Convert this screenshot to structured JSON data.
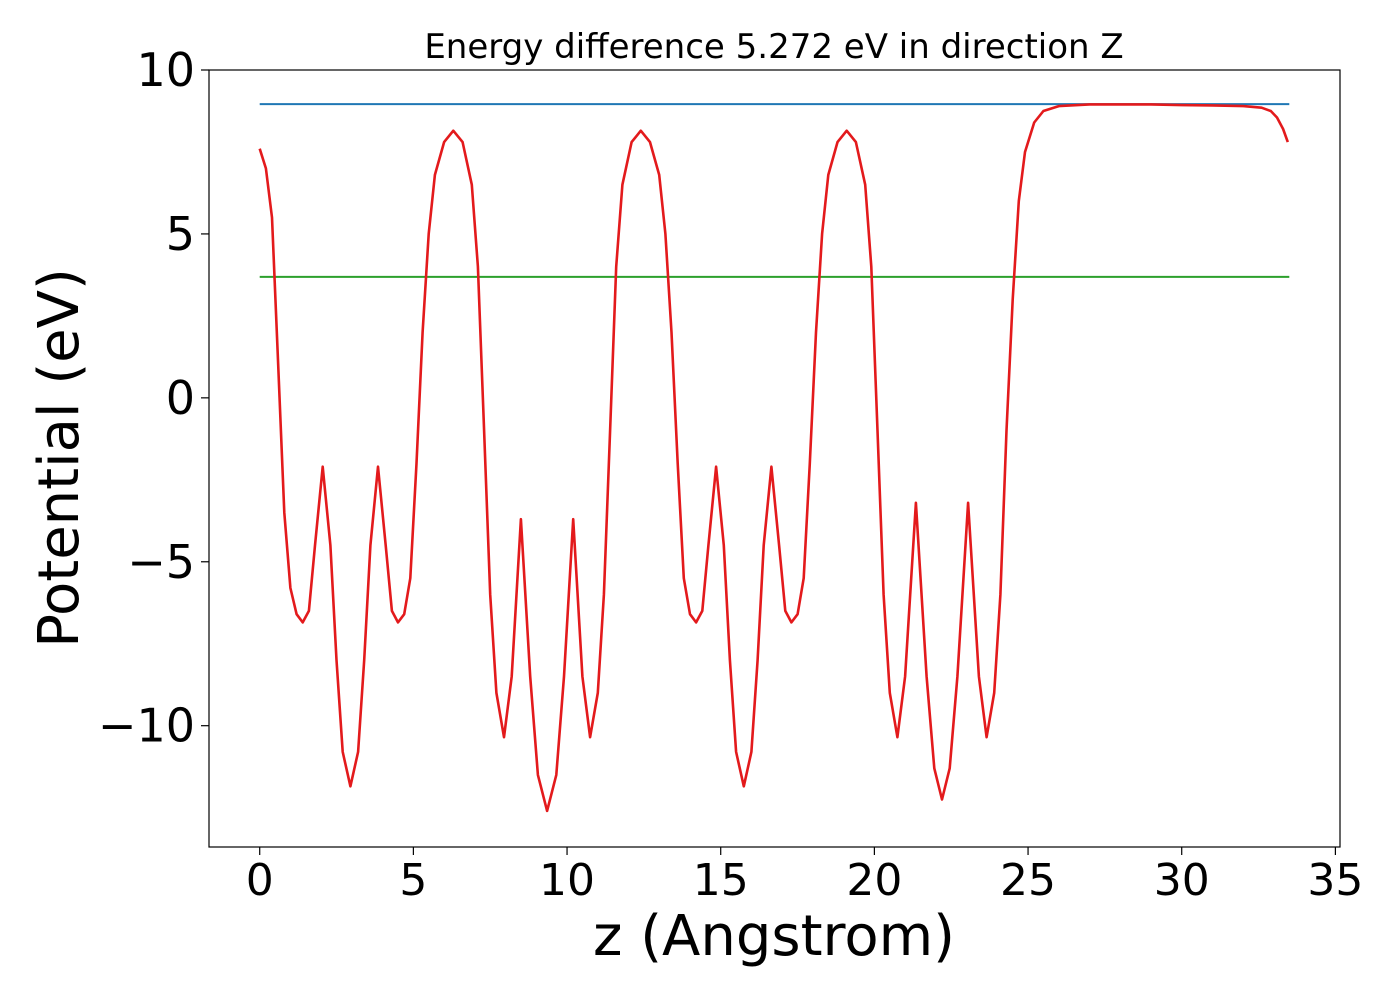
{
  "chart_data": {
    "type": "line",
    "title": "Energy difference 5.272 eV in direction Z",
    "xlabel": "z (Angstrom)",
    "ylabel": "Potential (eV)",
    "xlim": [
      -1.65,
      35.15
    ],
    "ylim": [
      -13.7,
      10.0
    ],
    "xticks": [
      0,
      5,
      10,
      15,
      20,
      25,
      30,
      35
    ],
    "xtick_labels": [
      "0",
      "5",
      "10",
      "15",
      "20",
      "25",
      "30",
      "35"
    ],
    "yticks": [
      10,
      5,
      0,
      -5,
      -10
    ],
    "ytick_labels": [
      "10",
      "5",
      "0",
      "−5",
      "−10"
    ],
    "grid": false,
    "legend": "none",
    "series": [
      {
        "color": "#1f77b4",
        "style": "horizontal",
        "x_range": [
          0,
          33.5
        ],
        "y": 8.96
      },
      {
        "color": "#2ca02c",
        "style": "horizontal",
        "x_range": [
          0,
          33.5
        ],
        "y": 3.69
      },
      {
        "color": "#e31a1c",
        "style": "curve",
        "points": [
          [
            0.0,
            7.6
          ],
          [
            0.2,
            7.0
          ],
          [
            0.4,
            5.5
          ],
          [
            0.6,
            1.0
          ],
          [
            0.8,
            -3.5
          ],
          [
            1.0,
            -5.8
          ],
          [
            1.2,
            -6.6
          ],
          [
            1.4,
            -6.85
          ],
          [
            1.6,
            -6.5
          ],
          [
            1.8,
            -4.5
          ],
          [
            2.05,
            -2.1
          ],
          [
            2.3,
            -4.5
          ],
          [
            2.5,
            -8.0
          ],
          [
            2.7,
            -10.8
          ],
          [
            2.95,
            -11.85
          ],
          [
            3.2,
            -10.8
          ],
          [
            3.4,
            -8.0
          ],
          [
            3.6,
            -4.5
          ],
          [
            3.85,
            -2.1
          ],
          [
            4.1,
            -4.5
          ],
          [
            4.3,
            -6.5
          ],
          [
            4.5,
            -6.85
          ],
          [
            4.7,
            -6.6
          ],
          [
            4.9,
            -5.5
          ],
          [
            5.1,
            -2.0
          ],
          [
            5.3,
            2.0
          ],
          [
            5.5,
            5.0
          ],
          [
            5.7,
            6.8
          ],
          [
            6.0,
            7.8
          ],
          [
            6.3,
            8.15
          ],
          [
            6.6,
            7.8
          ],
          [
            6.9,
            6.5
          ],
          [
            7.1,
            4.0
          ],
          [
            7.3,
            -1.0
          ],
          [
            7.5,
            -6.0
          ],
          [
            7.7,
            -9.0
          ],
          [
            7.95,
            -10.35
          ],
          [
            8.2,
            -8.5
          ],
          [
            8.5,
            -3.7
          ],
          [
            8.8,
            -8.5
          ],
          [
            9.05,
            -11.5
          ],
          [
            9.35,
            -12.6
          ],
          [
            9.65,
            -11.5
          ],
          [
            9.9,
            -8.5
          ],
          [
            10.2,
            -3.7
          ],
          [
            10.5,
            -8.5
          ],
          [
            10.75,
            -10.35
          ],
          [
            11.0,
            -9.0
          ],
          [
            11.2,
            -6.0
          ],
          [
            11.4,
            -1.0
          ],
          [
            11.6,
            4.0
          ],
          [
            11.8,
            6.5
          ],
          [
            12.1,
            7.8
          ],
          [
            12.4,
            8.15
          ],
          [
            12.7,
            7.8
          ],
          [
            13.0,
            6.8
          ],
          [
            13.2,
            5.0
          ],
          [
            13.4,
            2.0
          ],
          [
            13.6,
            -2.0
          ],
          [
            13.8,
            -5.5
          ],
          [
            14.0,
            -6.6
          ],
          [
            14.2,
            -6.85
          ],
          [
            14.4,
            -6.5
          ],
          [
            14.6,
            -4.5
          ],
          [
            14.85,
            -2.1
          ],
          [
            15.1,
            -4.5
          ],
          [
            15.3,
            -8.0
          ],
          [
            15.5,
            -10.8
          ],
          [
            15.75,
            -11.85
          ],
          [
            16.0,
            -10.8
          ],
          [
            16.2,
            -8.0
          ],
          [
            16.4,
            -4.5
          ],
          [
            16.65,
            -2.1
          ],
          [
            16.9,
            -4.5
          ],
          [
            17.1,
            -6.5
          ],
          [
            17.3,
            -6.85
          ],
          [
            17.5,
            -6.6
          ],
          [
            17.7,
            -5.5
          ],
          [
            17.9,
            -2.0
          ],
          [
            18.1,
            2.0
          ],
          [
            18.3,
            5.0
          ],
          [
            18.5,
            6.8
          ],
          [
            18.8,
            7.8
          ],
          [
            19.1,
            8.15
          ],
          [
            19.4,
            7.8
          ],
          [
            19.7,
            6.5
          ],
          [
            19.9,
            4.0
          ],
          [
            20.1,
            -1.0
          ],
          [
            20.3,
            -6.0
          ],
          [
            20.5,
            -9.0
          ],
          [
            20.75,
            -10.35
          ],
          [
            21.0,
            -8.5
          ],
          [
            21.35,
            -3.2
          ],
          [
            21.7,
            -8.5
          ],
          [
            21.95,
            -11.3
          ],
          [
            22.2,
            -12.25
          ],
          [
            22.45,
            -11.3
          ],
          [
            22.7,
            -8.5
          ],
          [
            23.05,
            -3.2
          ],
          [
            23.4,
            -8.5
          ],
          [
            23.65,
            -10.35
          ],
          [
            23.9,
            -9.0
          ],
          [
            24.1,
            -6.0
          ],
          [
            24.3,
            -1.0
          ],
          [
            24.5,
            3.0
          ],
          [
            24.7,
            6.0
          ],
          [
            24.9,
            7.5
          ],
          [
            25.2,
            8.4
          ],
          [
            25.5,
            8.75
          ],
          [
            26.0,
            8.9
          ],
          [
            27.0,
            8.95
          ],
          [
            28.0,
            8.95
          ],
          [
            29.0,
            8.95
          ],
          [
            30.0,
            8.93
          ],
          [
            31.0,
            8.92
          ],
          [
            32.0,
            8.9
          ],
          [
            32.6,
            8.85
          ],
          [
            32.9,
            8.75
          ],
          [
            33.1,
            8.55
          ],
          [
            33.3,
            8.2
          ],
          [
            33.45,
            7.8
          ]
        ]
      }
    ]
  }
}
